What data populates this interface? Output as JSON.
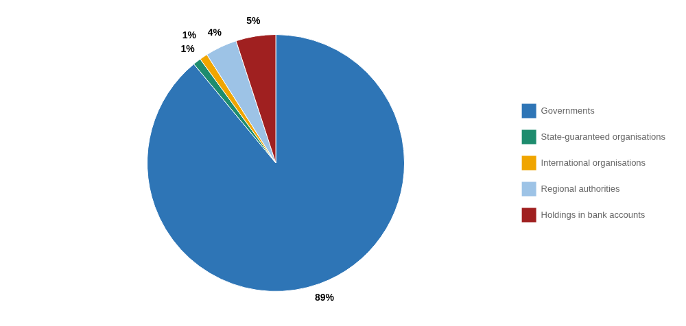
{
  "chart_data": {
    "type": "pie",
    "categories": [
      "Governments",
      "State-guaranteed organisations",
      "International organisations",
      "Regional authorities",
      "Holdings in bank accounts"
    ],
    "values": [
      89,
      1,
      1,
      4,
      5
    ],
    "value_labels": [
      "89%",
      "1%",
      "1%",
      "4%",
      "5%"
    ],
    "colors": [
      "#2E75B6",
      "#1E8C6E",
      "#F0A500",
      "#9DC3E6",
      "#A02020"
    ],
    "data_labels": true,
    "legend": "right"
  }
}
